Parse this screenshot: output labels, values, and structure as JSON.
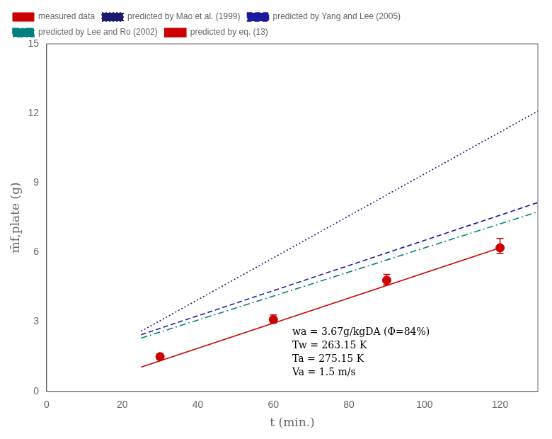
{
  "chart_data": {
    "type": "line",
    "xlabel": "t (min.)",
    "ylabel": "m̄f,plate (g)",
    "xlim": [
      0,
      130
    ],
    "ylim": [
      0,
      15
    ],
    "xticks": [
      0,
      20,
      40,
      60,
      80,
      100,
      120
    ],
    "yticks": [
      0,
      3,
      6,
      9,
      12,
      15
    ],
    "grid": false,
    "legend": "upper left",
    "series": [
      {
        "name": "measured data",
        "type": "scatter",
        "color": "#CC0000",
        "marker": "circle",
        "x": [
          30,
          60,
          90,
          120
        ],
        "values": [
          1.5,
          3.1,
          4.8,
          6.2
        ],
        "yerr_low": [
          0.12,
          0.15,
          0.2,
          0.25
        ],
        "yerr_high": [
          0.12,
          0.2,
          0.25,
          0.4
        ]
      },
      {
        "name": "predicted by Mao et al. (1999)",
        "type": "line",
        "color": "#1a1a6e",
        "line_style": "dotted",
        "x": [
          25,
          130
        ],
        "values": [
          2.6,
          12.1
        ]
      },
      {
        "name": "predicted by Yang and Lee (2005)",
        "type": "line",
        "color": "#1a1a9e",
        "line_style": "dashed",
        "x": [
          25,
          130
        ],
        "values": [
          2.45,
          8.15
        ]
      },
      {
        "name": "predicted by Lee and Ro (2002)",
        "type": "line",
        "color": "#008080",
        "line_style": "dashdot",
        "x": [
          25,
          130
        ],
        "values": [
          2.3,
          7.75
        ]
      },
      {
        "name": "predicted by eq. (13)",
        "type": "line",
        "color": "#CC0000",
        "line_style": "solid",
        "x": [
          25,
          120
        ],
        "values": [
          1.05,
          6.2
        ]
      }
    ],
    "annotations": [
      {
        "text": "wa = 3.67g/kgDA (Φ=84%)\nTw = 263.15 K\nTa = 275.15 K\nVa = 1.5 m/s",
        "x": 65,
        "y": 2.75
      }
    ]
  }
}
